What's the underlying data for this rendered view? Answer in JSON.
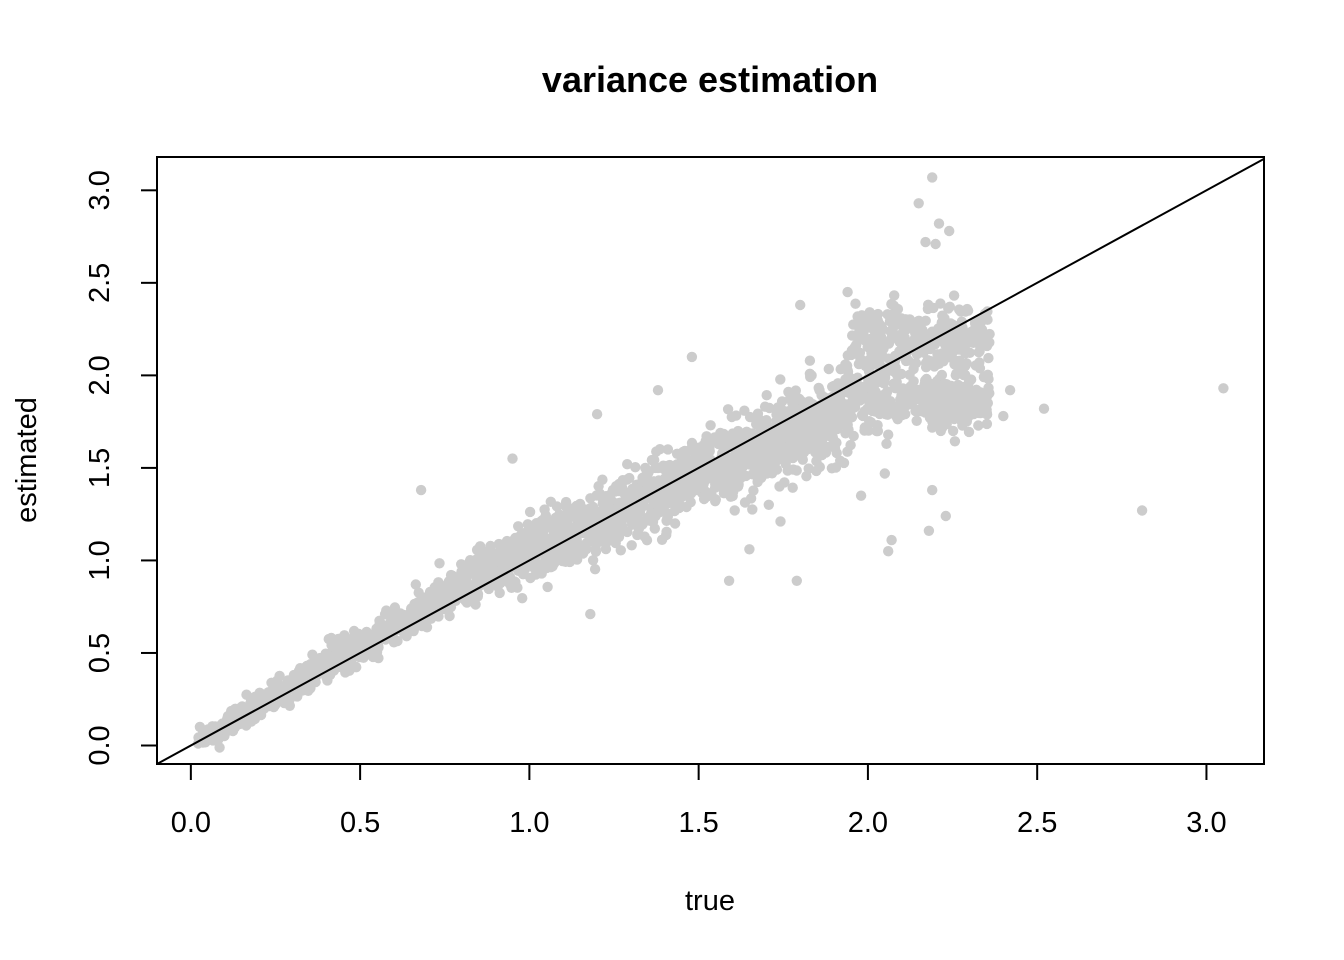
{
  "chart_data": {
    "type": "scatter",
    "title": "variance estimation",
    "xlabel": "true",
    "ylabel": "estimated",
    "xlim": [
      -0.1,
      3.17
    ],
    "ylim": [
      -0.1,
      3.18
    ],
    "x_ticks": [
      0.0,
      0.5,
      1.0,
      1.5,
      2.0,
      2.5,
      3.0
    ],
    "y_ticks": [
      0.0,
      0.5,
      1.0,
      1.5,
      2.0,
      2.5,
      3.0
    ],
    "x_tick_labels": [
      "0.0",
      "0.5",
      "1.0",
      "1.5",
      "2.0",
      "2.5",
      "3.0"
    ],
    "y_tick_labels": [
      "0.0",
      "0.5",
      "1.0",
      "1.5",
      "2.0",
      "2.5",
      "3.0"
    ],
    "grid": false,
    "legend": "none",
    "point_color": "#cccccc",
    "line_color": "#000000",
    "reference_line": {
      "intercept": 0,
      "slope": 1
    },
    "cloud": {
      "x_range": [
        0.02,
        2.36
      ],
      "center_slope": 0.92,
      "notes_visible": false
    },
    "outliers": [
      {
        "x": 3.05,
        "y": 1.93
      },
      {
        "x": 2.81,
        "y": 1.27
      },
      {
        "x": 2.52,
        "y": 1.82
      },
      {
        "x": 2.42,
        "y": 1.92
      },
      {
        "x": 2.4,
        "y": 1.78
      },
      {
        "x": 2.19,
        "y": 3.07
      },
      {
        "x": 2.15,
        "y": 2.93
      },
      {
        "x": 2.21,
        "y": 2.82
      },
      {
        "x": 2.24,
        "y": 2.78
      },
      {
        "x": 2.2,
        "y": 2.71
      },
      {
        "x": 2.17,
        "y": 2.72
      },
      {
        "x": 2.23,
        "y": 1.24
      },
      {
        "x": 2.18,
        "y": 1.16
      },
      {
        "x": 2.19,
        "y": 1.38
      },
      {
        "x": 2.07,
        "y": 1.11
      },
      {
        "x": 2.06,
        "y": 1.05
      },
      {
        "x": 1.98,
        "y": 1.35
      },
      {
        "x": 1.79,
        "y": 0.89
      },
      {
        "x": 1.59,
        "y": 0.89
      },
      {
        "x": 1.65,
        "y": 1.06
      },
      {
        "x": 1.18,
        "y": 0.71
      },
      {
        "x": 1.2,
        "y": 1.79
      },
      {
        "x": 1.48,
        "y": 2.1
      },
      {
        "x": 1.8,
        "y": 2.38
      },
      {
        "x": 1.94,
        "y": 2.45
      },
      {
        "x": 0.68,
        "y": 1.38
      },
      {
        "x": 0.95,
        "y": 1.55
      },
      {
        "x": 1.38,
        "y": 1.92
      },
      {
        "x": 2.05,
        "y": 1.47
      },
      {
        "x": 2.31,
        "y": 1.87
      }
    ]
  }
}
